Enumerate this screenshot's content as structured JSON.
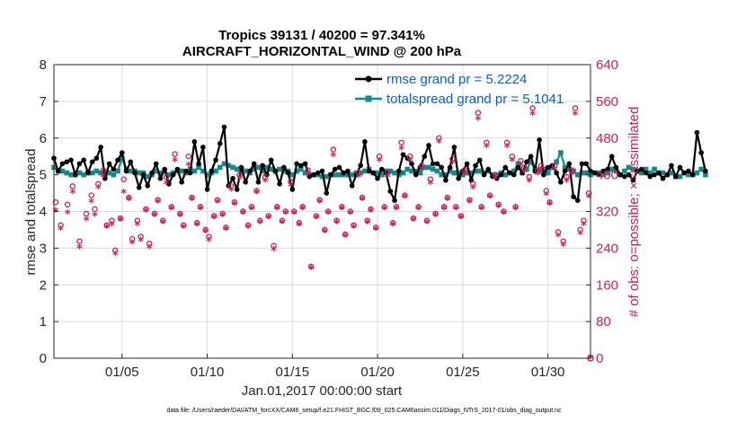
{
  "colors": {
    "rmse": "#000000",
    "spread": "#128a8a",
    "obs": "#d01c5b",
    "legend_text": "#0b5fd6",
    "grid": "#dcdcdc"
  },
  "chart_data": {
    "type": "line",
    "title": "Tropics 39131 / 40200 = 97.341%",
    "subtitle": "AIRCRAFT_HORIZONTAL_WIND @ 200 hPa",
    "xlabel": "Jan.01,2017 00:00:00 start",
    "ylabel": "rmse and totalspread",
    "y2label": "# of obs: o=possible; ×=assimilated",
    "footer": "data file: /Users/raeder/DAI/ATM_forcXX/CAM6_setup/f.e21.FHIST_BGC.f09_025.CAM6assim.011/Diags_NTrS_2017-01/obs_diag_output.nc",
    "xlim": [
      1,
      32.5
    ],
    "ylim": [
      0,
      8
    ],
    "y2lim": [
      0,
      640
    ],
    "xticks": [
      5,
      10,
      15,
      20,
      25,
      30
    ],
    "xtick_labels": [
      "01/05",
      "01/10",
      "01/15",
      "01/20",
      "01/25",
      "01/30"
    ],
    "yticks": [
      "0",
      "1",
      "2",
      "3",
      "4",
      "5",
      "6",
      "7",
      "8"
    ],
    "y2ticks": [
      "0",
      "80",
      "160",
      "240",
      "320",
      "400",
      "480",
      "560",
      "640"
    ],
    "legend": [
      "rmse grand pr = 5.2224",
      "totalspread grand pr = 5.1041"
    ],
    "x_start": 1.0,
    "x_step": 0.25,
    "rmse": [
      5.45,
      5.1,
      5.3,
      5.35,
      5.4,
      5.0,
      5.3,
      5.4,
      5.05,
      5.35,
      5.45,
      5.75,
      4.9,
      5.3,
      5.15,
      5.4,
      5.6,
      5.1,
      5.35,
      5.05,
      4.65,
      5.0,
      4.7,
      5.05,
      5.3,
      4.9,
      5.15,
      4.75,
      5.0,
      5.15,
      4.8,
      5.1,
      5.05,
      5.9,
      5.3,
      5.75,
      4.6,
      5.1,
      5.4,
      5.85,
      6.3,
      4.7,
      4.9,
      4.6,
      5.2,
      4.8,
      5.1,
      5.3,
      4.8,
      5.25,
      5.0,
      5.4,
      5.1,
      4.75,
      5.2,
      5.05,
      4.6,
      5.3,
      5.25,
      5.3,
      4.95,
      5.0,
      5.05,
      5.1,
      4.5,
      5.0,
      5.15,
      5.2,
      5.05,
      5.1,
      4.7,
      5.0,
      5.25,
      5.9,
      5.1,
      5.05,
      4.9,
      5.15,
      5.05,
      4.55,
      4.3,
      5.1,
      5.55,
      5.45,
      5.3,
      5.0,
      5.2,
      5.5,
      5.8,
      5.3,
      5.3,
      5.2,
      4.85,
      5.2,
      5.75,
      4.9,
      5.1,
      5.3,
      4.85,
      5.25,
      5.4,
      5.0,
      5.15,
      4.95,
      4.9,
      5.0,
      5.2,
      5.05,
      5.0,
      5.2,
      5.05,
      5.35,
      5.5,
      5.1,
      5.95,
      5.0,
      5.2,
      5.25,
      5.05,
      4.8,
      5.1,
      5.3,
      4.4,
      4.3,
      5.3,
      5.3,
      5.1,
      5.05,
      5.0,
      5.1,
      5.15,
      5.5,
      5.2,
      5.0,
      4.95,
      5.0,
      4.85,
      5.1,
      5.15,
      5.05,
      4.95,
      5.0,
      5.05,
      4.9,
      5.0,
      5.25,
      4.95,
      5.2,
      5.05,
      5.1,
      5.0,
      6.15,
      5.6,
      5.1
    ],
    "spread": [
      5.2,
      5.1,
      5.1,
      5.05,
      5.0,
      5.0,
      5.05,
      5.0,
      5.05,
      5.05,
      5.1,
      5.05,
      5.0,
      5.05,
      5.0,
      5.1,
      5.45,
      5.15,
      5.1,
      5.1,
      5.05,
      5.05,
      4.95,
      5.0,
      5.1,
      5.05,
      5.1,
      5.0,
      5.05,
      5.1,
      5.1,
      5.05,
      5.15,
      5.1,
      5.2,
      5.1,
      5.0,
      5.05,
      5.1,
      5.2,
      5.3,
      5.25,
      5.2,
      5.15,
      5.15,
      5.1,
      5.05,
      5.15,
      5.2,
      5.1,
      5.2,
      5.15,
      5.1,
      5.15,
      5.1,
      5.1,
      5.0,
      5.1,
      5.15,
      5.05,
      5.0,
      5.0,
      5.0,
      4.95,
      4.95,
      5.0,
      5.0,
      5.0,
      5.0,
      5.0,
      5.0,
      5.05,
      5.05,
      5.1,
      5.15,
      5.05,
      5.05,
      5.0,
      5.1,
      5.1,
      5.05,
      5.0,
      5.05,
      5.15,
      5.1,
      5.1,
      5.05,
      5.2,
      5.2,
      5.15,
      5.1,
      5.0,
      5.0,
      5.1,
      5.05,
      5.05,
      5.0,
      5.05,
      5.05,
      5.1,
      5.1,
      5.05,
      5.1,
      5.0,
      5.0,
      5.05,
      5.0,
      5.05,
      5.1,
      5.3,
      5.05,
      5.15,
      5.35,
      5.15,
      5.1,
      5.15,
      5.05,
      5.2,
      5.35,
      5.6,
      5.2,
      5.15,
      5.1,
      5.0,
      5.05,
      5.05,
      5.0,
      5.05,
      5.05,
      5.0,
      5.05,
      5.15,
      5.1,
      5.0,
      5.1,
      5.2,
      5.15,
      5.1,
      5.05,
      5.15,
      5.05,
      5.15,
      5.05,
      5.05,
      5.0,
      5.05,
      4.95,
      4.95,
      5.05,
      5.0,
      5.0,
      5.05,
      5.15,
      5.0
    ],
    "obs_possible": [
      [
        1.1,
        340
      ],
      [
        1.4,
        290
      ],
      [
        1.8,
        335
      ],
      [
        2.1,
        375
      ],
      [
        2.5,
        255
      ],
      [
        2.9,
        315
      ],
      [
        3.2,
        355
      ],
      [
        3.4,
        325
      ],
      [
        3.6,
        380
      ],
      [
        3.9,
        410
      ],
      [
        4.1,
        290
      ],
      [
        4.4,
        300
      ],
      [
        4.6,
        235
      ],
      [
        4.9,
        305
      ],
      [
        5.1,
        390
      ],
      [
        5.4,
        350
      ],
      [
        5.6,
        260
      ],
      [
        5.9,
        300
      ],
      [
        6.1,
        265
      ],
      [
        6.4,
        325
      ],
      [
        6.6,
        250
      ],
      [
        6.9,
        315
      ],
      [
        7.1,
        345
      ],
      [
        7.4,
        300
      ],
      [
        7.6,
        395
      ],
      [
        7.9,
        330
      ],
      [
        8.1,
        445
      ],
      [
        8.4,
        315
      ],
      [
        8.6,
        290
      ],
      [
        8.9,
        440
      ],
      [
        9.1,
        350
      ],
      [
        9.4,
        295
      ],
      [
        9.6,
        330
      ],
      [
        9.9,
        280
      ],
      [
        10.1,
        265
      ],
      [
        10.4,
        310
      ],
      [
        10.6,
        345
      ],
      [
        10.9,
        315
      ],
      [
        11.1,
        285
      ],
      [
        11.4,
        375
      ],
      [
        11.6,
        340
      ],
      [
        11.9,
        400
      ],
      [
        12.1,
        320
      ],
      [
        12.4,
        290
      ],
      [
        12.6,
        330
      ],
      [
        12.9,
        365
      ],
      [
        13.1,
        300
      ],
      [
        13.4,
        395
      ],
      [
        13.6,
        310
      ],
      [
        13.9,
        245
      ],
      [
        14.1,
        330
      ],
      [
        14.4,
        300
      ],
      [
        14.6,
        320
      ],
      [
        14.9,
        385
      ],
      [
        15.1,
        320
      ],
      [
        15.4,
        295
      ],
      [
        15.6,
        330
      ],
      [
        15.9,
        410
      ],
      [
        16.1,
        200
      ],
      [
        16.4,
        310
      ],
      [
        16.6,
        345
      ],
      [
        16.9,
        280
      ],
      [
        17.1,
        320
      ],
      [
        17.4,
        455
      ],
      [
        17.6,
        300
      ],
      [
        17.9,
        330
      ],
      [
        18.1,
        270
      ],
      [
        18.4,
        320
      ],
      [
        18.6,
        290
      ],
      [
        18.9,
        405
      ],
      [
        19.1,
        350
      ],
      [
        19.4,
        300
      ],
      [
        19.6,
        325
      ],
      [
        19.9,
        285
      ],
      [
        20.1,
        440
      ],
      [
        20.4,
        330
      ],
      [
        20.6,
        405
      ],
      [
        20.9,
        295
      ],
      [
        21.1,
        330
      ],
      [
        21.4,
        470
      ],
      [
        21.6,
        355
      ],
      [
        21.9,
        440
      ],
      [
        22.1,
        305
      ],
      [
        22.4,
        330
      ],
      [
        22.6,
        420
      ],
      [
        22.9,
        300
      ],
      [
        23.1,
        390
      ],
      [
        23.4,
        315
      ],
      [
        23.6,
        480
      ],
      [
        23.9,
        330
      ],
      [
        24.1,
        350
      ],
      [
        24.4,
        435
      ],
      [
        24.6,
        330
      ],
      [
        24.9,
        310
      ],
      [
        25.1,
        410
      ],
      [
        25.4,
        345
      ],
      [
        25.6,
        380
      ],
      [
        25.9,
        535
      ],
      [
        26.1,
        330
      ],
      [
        26.4,
        470
      ],
      [
        26.6,
        355
      ],
      [
        26.9,
        400
      ],
      [
        27.1,
        335
      ],
      [
        27.4,
        320
      ],
      [
        27.6,
        470
      ],
      [
        27.9,
        440
      ],
      [
        28.1,
        330
      ],
      [
        28.4,
        430
      ],
      [
        28.6,
        415
      ],
      [
        28.9,
        395
      ],
      [
        29.1,
        545
      ],
      [
        29.4,
        410
      ],
      [
        29.6,
        420
      ],
      [
        29.9,
        365
      ],
      [
        30.1,
        340
      ],
      [
        30.4,
        420
      ],
      [
        30.6,
        275
      ],
      [
        30.9,
        255
      ],
      [
        31.1,
        395
      ],
      [
        31.4,
        410
      ],
      [
        31.6,
        545
      ],
      [
        31.9,
        280
      ],
      [
        32.1,
        300
      ],
      [
        32.4,
        360
      ]
    ],
    "obs_assimilated": [
      [
        1.1,
        320
      ],
      [
        1.4,
        280
      ],
      [
        1.8,
        315
      ],
      [
        2.1,
        360
      ],
      [
        2.5,
        240
      ],
      [
        2.9,
        300
      ],
      [
        3.2,
        340
      ],
      [
        3.4,
        310
      ],
      [
        3.6,
        370
      ],
      [
        3.9,
        395
      ],
      [
        4.1,
        285
      ],
      [
        4.4,
        290
      ],
      [
        4.6,
        225
      ],
      [
        4.9,
        300
      ],
      [
        5.1,
        360
      ],
      [
        5.4,
        345
      ],
      [
        5.6,
        250
      ],
      [
        5.9,
        290
      ],
      [
        6.1,
        255
      ],
      [
        6.4,
        320
      ],
      [
        6.6,
        240
      ],
      [
        6.9,
        310
      ],
      [
        7.1,
        340
      ],
      [
        7.4,
        295
      ],
      [
        7.6,
        380
      ],
      [
        7.9,
        325
      ],
      [
        8.1,
        430
      ],
      [
        8.4,
        310
      ],
      [
        8.6,
        285
      ],
      [
        8.9,
        420
      ],
      [
        9.1,
        345
      ],
      [
        9.4,
        290
      ],
      [
        9.6,
        325
      ],
      [
        9.9,
        275
      ],
      [
        10.1,
        255
      ],
      [
        10.4,
        305
      ],
      [
        10.6,
        340
      ],
      [
        10.9,
        310
      ],
      [
        11.1,
        280
      ],
      [
        11.4,
        365
      ],
      [
        11.6,
        335
      ],
      [
        11.9,
        390
      ],
      [
        12.1,
        315
      ],
      [
        12.4,
        285
      ],
      [
        12.6,
        325
      ],
      [
        12.9,
        360
      ],
      [
        13.1,
        295
      ],
      [
        13.4,
        385
      ],
      [
        13.6,
        305
      ],
      [
        13.9,
        235
      ],
      [
        14.1,
        325
      ],
      [
        14.4,
        295
      ],
      [
        14.6,
        315
      ],
      [
        14.9,
        375
      ],
      [
        15.1,
        315
      ],
      [
        15.4,
        290
      ],
      [
        15.6,
        325
      ],
      [
        15.9,
        400
      ],
      [
        16.1,
        195
      ],
      [
        16.4,
        305
      ],
      [
        16.6,
        340
      ],
      [
        16.9,
        275
      ],
      [
        17.1,
        315
      ],
      [
        17.4,
        440
      ],
      [
        17.6,
        295
      ],
      [
        17.9,
        325
      ],
      [
        18.1,
        265
      ],
      [
        18.4,
        315
      ],
      [
        18.6,
        285
      ],
      [
        18.9,
        395
      ],
      [
        19.1,
        345
      ],
      [
        19.4,
        295
      ],
      [
        19.6,
        320
      ],
      [
        19.9,
        280
      ],
      [
        20.1,
        430
      ],
      [
        20.4,
        325
      ],
      [
        20.6,
        395
      ],
      [
        20.9,
        290
      ],
      [
        21.1,
        325
      ],
      [
        21.4,
        455
      ],
      [
        21.6,
        350
      ],
      [
        21.9,
        430
      ],
      [
        22.1,
        300
      ],
      [
        22.4,
        325
      ],
      [
        22.6,
        410
      ],
      [
        22.9,
        295
      ],
      [
        23.1,
        380
      ],
      [
        23.4,
        310
      ],
      [
        23.6,
        470
      ],
      [
        23.9,
        325
      ],
      [
        24.1,
        345
      ],
      [
        24.4,
        425
      ],
      [
        24.6,
        325
      ],
      [
        24.9,
        305
      ],
      [
        25.1,
        400
      ],
      [
        25.4,
        340
      ],
      [
        25.6,
        370
      ],
      [
        25.9,
        520
      ],
      [
        26.1,
        325
      ],
      [
        26.4,
        460
      ],
      [
        26.6,
        350
      ],
      [
        26.9,
        390
      ],
      [
        27.1,
        330
      ],
      [
        27.4,
        315
      ],
      [
        27.6,
        460
      ],
      [
        27.9,
        430
      ],
      [
        28.1,
        325
      ],
      [
        28.4,
        420
      ],
      [
        28.6,
        405
      ],
      [
        28.9,
        385
      ],
      [
        29.1,
        530
      ],
      [
        29.4,
        400
      ],
      [
        29.6,
        410
      ],
      [
        29.9,
        355
      ],
      [
        30.1,
        335
      ],
      [
        30.4,
        410
      ],
      [
        30.6,
        265
      ],
      [
        30.9,
        245
      ],
      [
        31.1,
        385
      ],
      [
        31.4,
        400
      ],
      [
        31.6,
        530
      ],
      [
        31.9,
        270
      ],
      [
        32.1,
        290
      ],
      [
        32.4,
        350
      ]
    ]
  }
}
